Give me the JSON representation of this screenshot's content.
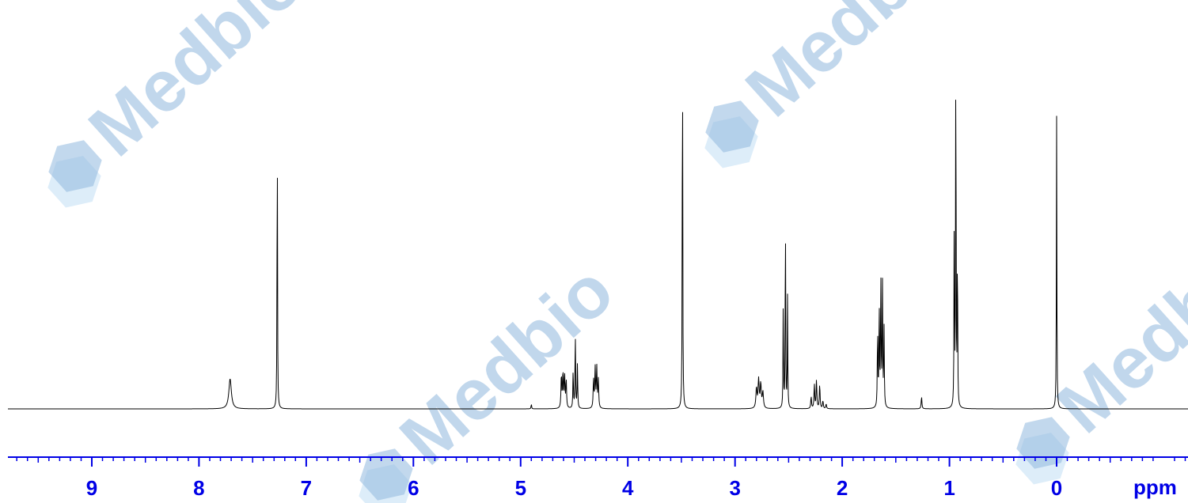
{
  "chart_data": {
    "type": "line",
    "title": "",
    "xlabel": "ppm",
    "ylabel": "",
    "xlim": [
      9.75,
      -1.2
    ],
    "x_reversed": true,
    "ylim": [
      0,
      1.0
    ],
    "grid": false,
    "legend": "none",
    "tick_labels": [
      "9",
      "8",
      "7",
      "6",
      "5",
      "4",
      "3",
      "2",
      "1",
      "0"
    ],
    "tick_values": [
      9,
      8,
      7,
      6,
      5,
      4,
      3,
      2,
      1,
      0
    ],
    "minor_tick_step": 0.1,
    "series": [
      {
        "line_color": "#000000",
        "peaks": [
          {
            "shift": 7.71,
            "height": 0.075,
            "width": 0.014
          },
          {
            "shift": 7.27,
            "height": 0.74,
            "width": 0.0025
          },
          {
            "shift": 4.9,
            "height": 0.012,
            "width": 0.003
          },
          {
            "shift": 4.62,
            "height": 0.085,
            "width": 0.004
          },
          {
            "shift": 4.605,
            "height": 0.09,
            "width": 0.004
          },
          {
            "shift": 4.59,
            "height": 0.085,
            "width": 0.004
          },
          {
            "shift": 4.575,
            "height": 0.07,
            "width": 0.004
          },
          {
            "shift": 4.51,
            "height": 0.095,
            "width": 0.003
          },
          {
            "shift": 4.49,
            "height": 0.19,
            "width": 0.003
          },
          {
            "shift": 4.47,
            "height": 0.11,
            "width": 0.003
          },
          {
            "shift": 4.32,
            "height": 0.07,
            "width": 0.004
          },
          {
            "shift": 4.305,
            "height": 0.1,
            "width": 0.004
          },
          {
            "shift": 4.29,
            "height": 0.1,
            "width": 0.004
          },
          {
            "shift": 4.275,
            "height": 0.07,
            "width": 0.004
          },
          {
            "shift": 3.49,
            "height": 1.0,
            "width": 0.0025
          },
          {
            "shift": 2.8,
            "height": 0.05,
            "width": 0.006
          },
          {
            "shift": 2.78,
            "height": 0.07,
            "width": 0.006
          },
          {
            "shift": 2.76,
            "height": 0.06,
            "width": 0.006
          },
          {
            "shift": 2.74,
            "height": 0.04,
            "width": 0.006
          },
          {
            "shift": 2.55,
            "height": 0.27,
            "width": 0.0025
          },
          {
            "shift": 2.53,
            "height": 0.51,
            "width": 0.0025
          },
          {
            "shift": 2.51,
            "height": 0.28,
            "width": 0.0025
          },
          {
            "shift": 2.29,
            "height": 0.03,
            "width": 0.004
          },
          {
            "shift": 2.26,
            "height": 0.06,
            "width": 0.004
          },
          {
            "shift": 2.24,
            "height": 0.07,
            "width": 0.004
          },
          {
            "shift": 2.21,
            "height": 0.06,
            "width": 0.004
          },
          {
            "shift": 2.18,
            "height": 0.02,
            "width": 0.004
          },
          {
            "shift": 2.15,
            "height": 0.012,
            "width": 0.004
          },
          {
            "shift": 1.67,
            "height": 0.2,
            "width": 0.003
          },
          {
            "shift": 1.655,
            "height": 0.26,
            "width": 0.003
          },
          {
            "shift": 1.64,
            "height": 0.33,
            "width": 0.003
          },
          {
            "shift": 1.625,
            "height": 0.32,
            "width": 0.003
          },
          {
            "shift": 1.61,
            "height": 0.2,
            "width": 0.003
          },
          {
            "shift": 1.26,
            "height": 0.03,
            "width": 0.004
          },
          {
            "shift": 0.955,
            "height": 0.5,
            "width": 0.0025
          },
          {
            "shift": 0.94,
            "height": 0.96,
            "width": 0.0025
          },
          {
            "shift": 0.925,
            "height": 0.42,
            "width": 0.0025
          },
          {
            "shift": 0.0,
            "height": 0.73,
            "width": 0.0025
          }
        ]
      }
    ]
  },
  "colors": {
    "axis": "#0000e6",
    "watermark_text": "#8fb8de",
    "watermark_hex_dark": "#8fb8de",
    "watermark_hex_light": "#cfe6f6"
  },
  "watermarks": [
    {
      "text": "Medbio"
    },
    {
      "text": "Medbio"
    },
    {
      "text": "Medbio"
    },
    {
      "text": "Medbio"
    }
  ]
}
